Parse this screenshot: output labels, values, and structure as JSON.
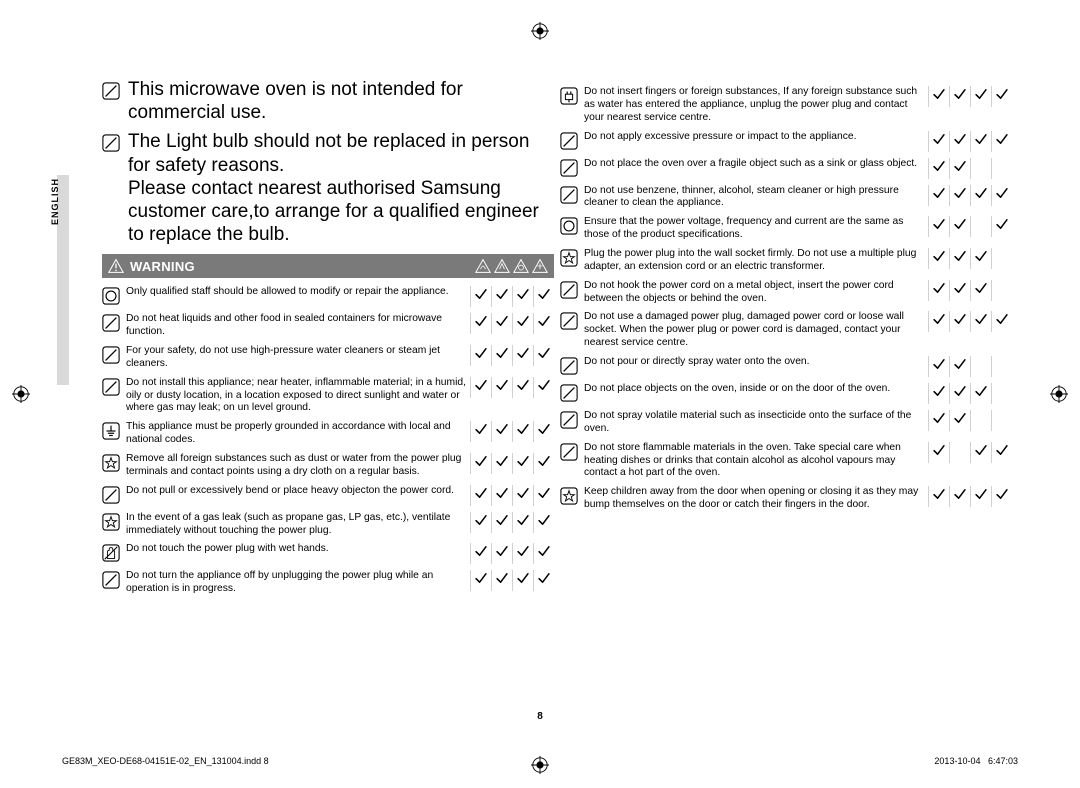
{
  "language_tab": "ENGLISH",
  "page_number": "8",
  "footer_left": "GE83M_XEO-DE68-04151E-02_EN_131004.indd   8",
  "footer_right": "2013-10-04     6:47:03",
  "intro": [
    "This microwave oven is not intended for commercial use.",
    "The Light bulb should not be replaced in person for safety reasons.\nPlease contact nearest authorised Samsung customer care,to arrange for a qualified engineer to replace the bulb."
  ],
  "warning_label": "WARNING",
  "left_rows": [
    {
      "icon": "circle",
      "text": "Only qualified staff should be allowed to modify or repair the appliance.",
      "checks": [
        true,
        true,
        true,
        true
      ]
    },
    {
      "icon": "diag",
      "text": "Do not heat liquids and other food in sealed containers for microwave function.",
      "checks": [
        true,
        true,
        true,
        true
      ]
    },
    {
      "icon": "diag",
      "text": "For your safety, do not use high-pressure water cleaners or steam jet cleaners.",
      "checks": [
        true,
        true,
        true,
        true
      ]
    },
    {
      "icon": "diag",
      "text": "Do not install this appliance; near heater, inflammable material; in a humid, oily or dusty location, in a location exposed to direct sunlight and water or where gas may leak; on un level ground.",
      "checks": [
        true,
        true,
        true,
        true
      ]
    },
    {
      "icon": "ground",
      "text": "This appliance must be properly grounded in accordance with local and national codes.",
      "checks": [
        true,
        true,
        true,
        true
      ]
    },
    {
      "icon": "star",
      "text": "Remove all foreign substances such as dust or water from the power plug terminals and contact points using a dry cloth on a regular basis.",
      "checks": [
        true,
        true,
        true,
        true
      ]
    },
    {
      "icon": "diag",
      "text": "Do not pull or excessively bend or place heavy objecton the power cord.",
      "checks": [
        true,
        true,
        true,
        true
      ]
    },
    {
      "icon": "star",
      "text": "In the event of a gas leak (such as propane gas, LP gas, etc.), ventilate immediately without touching the power plug.",
      "checks": [
        true,
        true,
        true,
        true
      ]
    },
    {
      "icon": "hand",
      "text": "Do not touch the power plug with wet hands.",
      "checks": [
        true,
        true,
        true,
        true
      ]
    },
    {
      "icon": "diag",
      "text": "Do not turn the appliance off by unplugging the power plug while an operation is in progress.",
      "checks": [
        true,
        true,
        true,
        true
      ]
    }
  ],
  "right_rows": [
    {
      "icon": "plug",
      "text": "Do not insert fingers or foreign substances, If any foreign substance such as water has entered the appliance, unplug the power plug and contact your nearest service centre.",
      "checks": [
        true,
        true,
        true,
        true
      ]
    },
    {
      "icon": "diag",
      "text": "Do not apply excessive pressure or impact to the appliance.",
      "checks": [
        true,
        true,
        true,
        true
      ]
    },
    {
      "icon": "diag",
      "text": "Do not place the oven over a fragile object such as a sink or glass object.",
      "checks": [
        true,
        true,
        false,
        false
      ]
    },
    {
      "icon": "diag",
      "text": "Do not use benzene, thinner, alcohol, steam cleaner or high pressure cleaner to clean the appliance.",
      "checks": [
        true,
        true,
        true,
        true
      ]
    },
    {
      "icon": "circle",
      "text": "Ensure that the power voltage, frequency and current are the same as those of the product specifications.",
      "checks": [
        true,
        true,
        false,
        true
      ]
    },
    {
      "icon": "star",
      "text": "Plug the power plug into the wall socket firmly. Do not use a multiple plug adapter, an extension cord or an electric transformer.",
      "checks": [
        true,
        true,
        true,
        false
      ]
    },
    {
      "icon": "diag",
      "text": "Do not hook the power cord on a metal object, insert the power cord between the objects or behind the oven.",
      "checks": [
        true,
        true,
        true,
        false
      ]
    },
    {
      "icon": "diag",
      "text": "Do not use a damaged power plug, damaged power cord or loose wall socket. When the power plug or power cord is damaged, contact your nearest service centre.",
      "checks": [
        true,
        true,
        true,
        true
      ]
    },
    {
      "icon": "diag",
      "text": "Do not pour or directly spray water onto the oven.",
      "checks": [
        true,
        true,
        false,
        false
      ]
    },
    {
      "icon": "diag",
      "text": "Do not place objects on the oven, inside or on the door of the oven.",
      "checks": [
        true,
        true,
        true,
        false
      ]
    },
    {
      "icon": "diag",
      "text": "Do not spray volatile material such as insecticide onto the surface of the oven.",
      "checks": [
        true,
        true,
        false,
        false
      ]
    },
    {
      "icon": "diag",
      "text": "Do not store flammable materials in the oven. Take special care when heating dishes or drinks that contain alcohol as alcohol vapours may contact a hot part of the oven.",
      "checks": [
        true,
        false,
        true,
        true
      ]
    },
    {
      "icon": "star",
      "text": "Keep children away from the door when opening or closing it as they may bump themselves on the door or catch their fingers in the door.",
      "checks": [
        true,
        true,
        true,
        true
      ]
    }
  ]
}
